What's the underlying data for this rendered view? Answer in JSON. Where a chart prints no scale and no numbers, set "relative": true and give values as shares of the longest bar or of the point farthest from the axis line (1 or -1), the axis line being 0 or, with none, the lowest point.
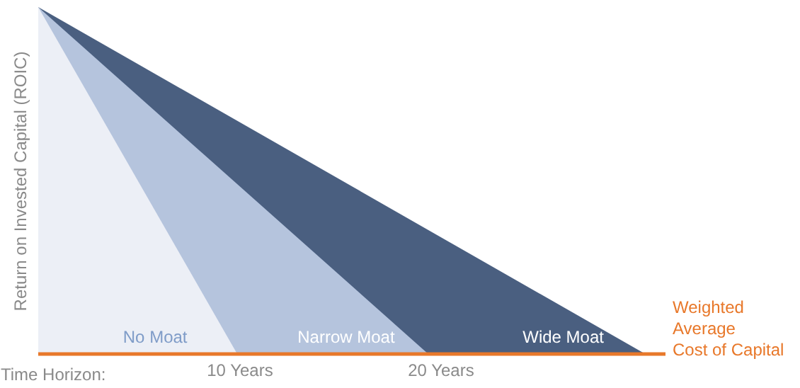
{
  "chart_data": {
    "type": "area",
    "relative": true,
    "ylabel": "Return on Invested Capital (ROIC)",
    "xlabel": "Time Horizon:",
    "xlim": [
      0,
      31.2
    ],
    "xticks": [
      {
        "value": 10,
        "label": "10 Years"
      },
      {
        "value": 20,
        "label": "20 Years"
      }
    ],
    "grid": false,
    "series": [
      {
        "name": "Wide Moat",
        "color": "#4a5f80",
        "x": [
          0,
          30.2
        ],
        "values": [
          1,
          0
        ]
      },
      {
        "name": "Narrow Moat",
        "color": "#b5c4dd",
        "x": [
          0,
          19.4
        ],
        "values": [
          1,
          0
        ]
      },
      {
        "name": "No Moat",
        "color": "#eceff6",
        "x": [
          0,
          9.9
        ],
        "values": [
          1,
          0
        ]
      }
    ],
    "ref_lines": [
      {
        "axis": "y",
        "value": 0,
        "label": "Weighted Average Cost of Capital",
        "color": "#e8782a"
      }
    ]
  }
}
